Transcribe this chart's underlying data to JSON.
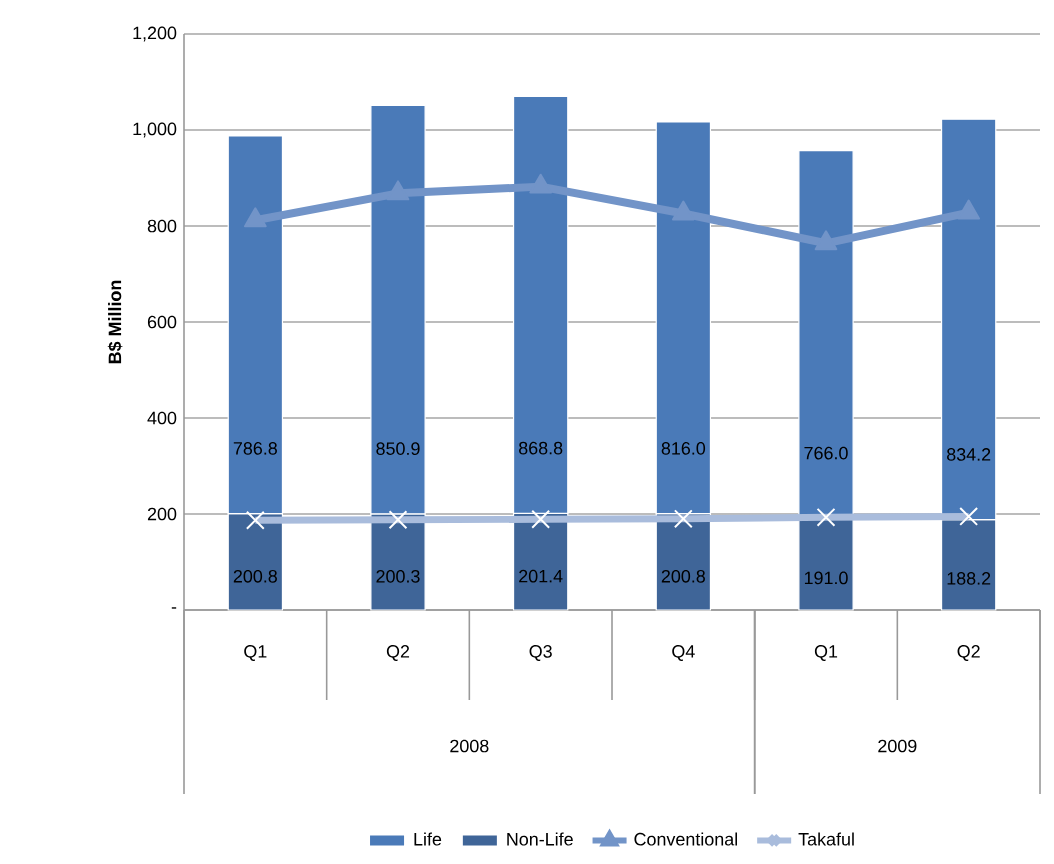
{
  "chart_data": {
    "type": "bar",
    "stacked": true,
    "ylabel": "B$ Million",
    "categories": [
      "Q1",
      "Q2",
      "Q3",
      "Q4",
      "Q1",
      "Q2"
    ],
    "annotations": [
      "2008",
      "2009"
    ],
    "series": [
      {
        "name": "Non-Life",
        "color": "#3f6598",
        "values": [
          200.8,
          200.3,
          201.4,
          200.8,
          191.0,
          188.2
        ],
        "value_labels": [
          "200.8",
          "200.3",
          "201.4",
          "200.8",
          "191.0",
          "188.2"
        ]
      },
      {
        "name": "Life",
        "color": "#4a7ab8",
        "values": [
          786.8,
          850.9,
          868.8,
          816.0,
          766.0,
          834.2
        ],
        "value_labels": [
          "786.8",
          "850.9",
          "868.8",
          "816.0",
          "766.0",
          "834.2"
        ]
      },
      {
        "name": "Conventional",
        "type": "line",
        "marker": "triangle",
        "color": "#7294c8",
        "values": [
          812,
          868,
          882,
          826,
          764,
          828
        ]
      },
      {
        "name": "Takaful",
        "type": "line",
        "marker": "cross",
        "color": "#a9bcdc",
        "values": [
          187,
          188,
          189,
          190,
          193,
          195
        ]
      }
    ],
    "legend": "bottom",
    "grid": "y",
    "ylim": [
      0,
      1200
    ],
    "yticks": [
      {
        "value": 0,
        "label": "-"
      },
      200,
      400,
      600,
      800,
      {
        "value": 1000,
        "label": "1,000"
      },
      {
        "value": 1200,
        "label": "1,200"
      }
    ]
  }
}
